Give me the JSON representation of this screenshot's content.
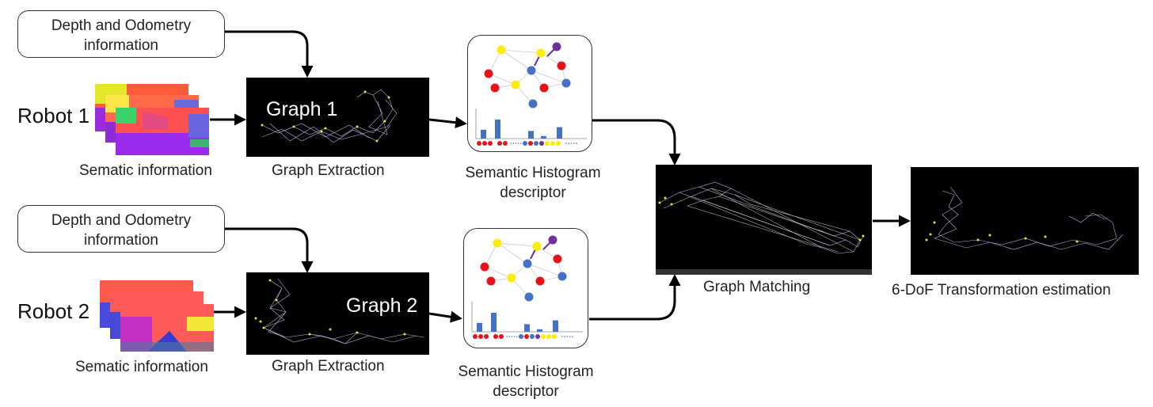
{
  "colors": {
    "red": "#e8131a",
    "yellow": "#ffee00",
    "blue": "#4472c4",
    "purple": "#7030a0",
    "panel_bg": "#000000",
    "graph_nodes": "#e6e633",
    "graph_edges": "#b9a9d6"
  },
  "robot1": {
    "name": "Robot 1",
    "info_box": "Depth and Odometry information",
    "semantic_label": "Sematic information",
    "graph_title": "Graph 1",
    "extraction_label": "Graph Extraction",
    "descriptor_label_line1": "Semantic Histogram",
    "descriptor_label_line2": "descriptor"
  },
  "robot2": {
    "name": "Robot 2",
    "info_box": "Depth and Odometry information",
    "semantic_label": "Sematic information",
    "graph_title": "Graph 2",
    "extraction_label": "Graph Extraction",
    "descriptor_label_line1": "Semantic Histogram",
    "descriptor_label_line2": "descriptor"
  },
  "matching": {
    "label": "Graph Matching"
  },
  "transform": {
    "label": "6-DoF Transformation estimation"
  },
  "histogram_dots": [
    "red",
    "red",
    "red",
    "yellow",
    "blue",
    "red",
    "blue",
    "purple",
    "yellow"
  ],
  "histogram_bars": [
    0.35,
    0.75,
    0.3,
    0.1,
    0.45
  ]
}
